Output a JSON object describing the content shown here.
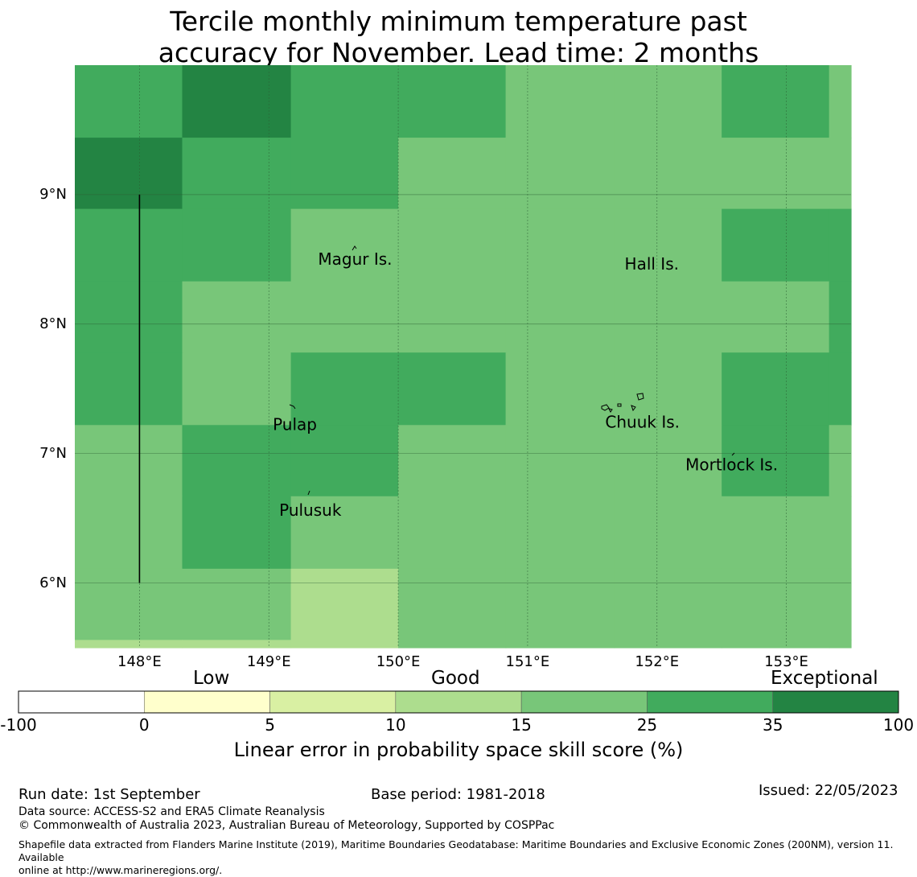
{
  "title": {
    "line1": "Tercile monthly minimum temperature past",
    "line2": "accuracy for November. Lead time: 2 months"
  },
  "map": {
    "lon_range": [
      147.5,
      153.5
    ],
    "lat_range": [
      5.5,
      10.0
    ],
    "lat_ticks": [
      {
        "value": 9,
        "label": "9°N"
      },
      {
        "value": 8,
        "label": "8°N"
      },
      {
        "value": 7,
        "label": "7°N"
      },
      {
        "value": 6,
        "label": "6°N"
      }
    ],
    "lon_ticks": [
      {
        "value": 148,
        "label": "148°E"
      },
      {
        "value": 149,
        "label": "149°E"
      },
      {
        "value": 150,
        "label": "150°E"
      },
      {
        "value": 151,
        "label": "151°E"
      },
      {
        "value": 152,
        "label": "152°E"
      },
      {
        "value": 153,
        "label": "153°E"
      }
    ],
    "gridlines": true,
    "grid_lon_edges": [
      147.5,
      148.33,
      149.17,
      150.0,
      150.83,
      151.67,
      152.5,
      153.33,
      153.5
    ],
    "grid_lat_edges": [
      10.0,
      9.44,
      8.89,
      8.33,
      7.78,
      7.22,
      6.67,
      6.11,
      5.56,
      5.5
    ],
    "cell_categories": [
      [
        5,
        6,
        5,
        5,
        4,
        4,
        5,
        4
      ],
      [
        6,
        5,
        5,
        4,
        4,
        4,
        4,
        4
      ],
      [
        5,
        5,
        4,
        4,
        4,
        4,
        5,
        5
      ],
      [
        5,
        4,
        4,
        4,
        4,
        4,
        4,
        5
      ],
      [
        5,
        4,
        5,
        5,
        4,
        4,
        5,
        5
      ],
      [
        4,
        5,
        5,
        4,
        4,
        4,
        5,
        4
      ],
      [
        4,
        5,
        4,
        4,
        4,
        4,
        4,
        4
      ],
      [
        4,
        4,
        3,
        4,
        4,
        4,
        4,
        4
      ],
      [
        3,
        3,
        3,
        4,
        4,
        4,
        4,
        4
      ]
    ],
    "places": [
      {
        "name": "Magur Is.",
        "lon": 149.38,
        "lat": 8.46
      },
      {
        "name": "Hall Is.",
        "lon": 151.75,
        "lat": 8.42
      },
      {
        "name": "Pulap",
        "lon": 149.03,
        "lat": 7.18
      },
      {
        "name": "Chuuk Is.",
        "lon": 151.6,
        "lat": 7.2
      },
      {
        "name": "Mortlock Is.",
        "lon": 152.22,
        "lat": 6.87
      },
      {
        "name": "Pulusuk",
        "lon": 149.08,
        "lat": 6.52
      }
    ],
    "boundary_line": {
      "lon": 148.0,
      "lat_from": 6.0,
      "lat_to": 9.0
    }
  },
  "colorbar": {
    "categories": [
      {
        "label": "Low"
      },
      {
        "label": "Good"
      },
      {
        "label": "Exceptional"
      }
    ],
    "boundaries": [
      "-100",
      "0",
      "5",
      "10",
      "15",
      "25",
      "35",
      "100"
    ],
    "colors": [
      "#ffffff",
      "#ffffcc",
      "#d9f0a3",
      "#addd8e",
      "#78c679",
      "#41ab5d",
      "#238443"
    ],
    "label": "Linear error in probability space skill score (%)"
  },
  "footer": {
    "run_date": "Run date: 1st September",
    "base_period": "Base period: 1981-2018",
    "issued": "Issued: 22/05/2023",
    "data_source": "Data source: ACCESS-S2 and ERA5 Climate Reanalysis",
    "copyright": "© Commonwealth of Australia 2023, Australian Bureau of Meteorology, Supported by COSPPac",
    "shapefile_line1": "Shapefile data extracted from Flanders Marine Institute (2019), Maritime Boundaries Geodatabase: Maritime Boundaries and Exclusive Economic Zones (200NM), version 11. Available",
    "shapefile_line2": "online at http://www.marineregions.org/."
  }
}
